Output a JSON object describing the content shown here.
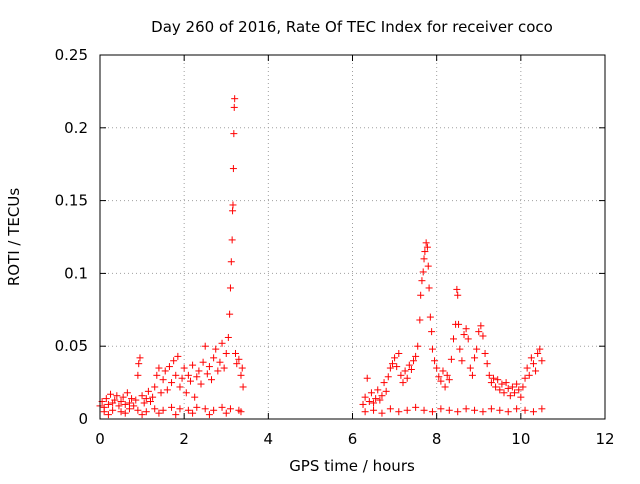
{
  "chart_data": {
    "type": "scatter",
    "title": "Day 260 of 2016, Rate Of TEC Index for receiver coco",
    "xlabel": "GPS time / hours",
    "ylabel": "ROTI / TECUs",
    "xlim": [
      0,
      12
    ],
    "ylim": [
      0,
      0.25
    ],
    "x_ticks": [
      {
        "value": 0,
        "label": "0"
      },
      {
        "value": 2,
        "label": "2"
      },
      {
        "value": 4,
        "label": "4"
      },
      {
        "value": 6,
        "label": "6"
      },
      {
        "value": 8,
        "label": "8"
      },
      {
        "value": 10,
        "label": "10"
      },
      {
        "value": 12,
        "label": "12"
      }
    ],
    "y_ticks": [
      {
        "value": 0,
        "label": "0"
      },
      {
        "value": 0.05,
        "label": "0.05"
      },
      {
        "value": 0.1,
        "label": "0.1"
      },
      {
        "value": 0.15,
        "label": "0.15"
      },
      {
        "value": 0.2,
        "label": "0.2"
      },
      {
        "value": 0.25,
        "label": "0.25"
      }
    ],
    "grid": true,
    "marker": "+",
    "marker_color": "#ff0000",
    "series": [
      {
        "name": "ROTI",
        "points": [
          [
            0.0,
            0.009
          ],
          [
            0.05,
            0.012
          ],
          [
            0.1,
            0.008
          ],
          [
            0.15,
            0.014
          ],
          [
            0.2,
            0.01
          ],
          [
            0.25,
            0.017
          ],
          [
            0.3,
            0.011
          ],
          [
            0.35,
            0.013
          ],
          [
            0.4,
            0.016
          ],
          [
            0.45,
            0.009
          ],
          [
            0.5,
            0.012
          ],
          [
            0.55,
            0.015
          ],
          [
            0.6,
            0.01
          ],
          [
            0.65,
            0.018
          ],
          [
            0.7,
            0.011
          ],
          [
            0.75,
            0.014
          ],
          [
            0.8,
            0.009
          ],
          [
            0.85,
            0.013
          ],
          [
            0.9,
            0.03
          ],
          [
            0.92,
            0.038
          ],
          [
            0.95,
            0.042
          ],
          [
            1.0,
            0.016
          ],
          [
            1.05,
            0.011
          ],
          [
            1.1,
            0.014
          ],
          [
            1.15,
            0.019
          ],
          [
            1.2,
            0.012
          ],
          [
            1.25,
            0.015
          ],
          [
            1.3,
            0.022
          ],
          [
            1.35,
            0.03
          ],
          [
            1.4,
            0.035
          ],
          [
            1.45,
            0.018
          ],
          [
            1.5,
            0.027
          ],
          [
            1.55,
            0.033
          ],
          [
            1.6,
            0.02
          ],
          [
            1.65,
            0.036
          ],
          [
            1.7,
            0.025
          ],
          [
            1.75,
            0.04
          ],
          [
            1.8,
            0.03
          ],
          [
            1.85,
            0.043
          ],
          [
            1.9,
            0.022
          ],
          [
            1.95,
            0.028
          ],
          [
            2.0,
            0.035
          ],
          [
            2.05,
            0.018
          ],
          [
            2.1,
            0.03
          ],
          [
            2.15,
            0.026
          ],
          [
            2.2,
            0.037
          ],
          [
            2.25,
            0.015
          ],
          [
            2.3,
            0.029
          ],
          [
            2.35,
            0.033
          ],
          [
            2.4,
            0.024
          ],
          [
            2.45,
            0.039
          ],
          [
            2.5,
            0.05
          ],
          [
            2.55,
            0.031
          ],
          [
            2.6,
            0.036
          ],
          [
            2.65,
            0.027
          ],
          [
            2.7,
            0.042
          ],
          [
            2.75,
            0.048
          ],
          [
            2.8,
            0.033
          ],
          [
            2.85,
            0.039
          ],
          [
            2.9,
            0.052
          ],
          [
            2.95,
            0.035
          ],
          [
            3.0,
            0.045
          ],
          [
            3.05,
            0.056
          ],
          [
            3.08,
            0.072
          ],
          [
            3.1,
            0.09
          ],
          [
            3.12,
            0.108
          ],
          [
            3.14,
            0.123
          ],
          [
            3.15,
            0.143
          ],
          [
            3.16,
            0.147
          ],
          [
            3.17,
            0.172
          ],
          [
            3.18,
            0.196
          ],
          [
            3.19,
            0.214
          ],
          [
            3.2,
            0.22
          ],
          [
            3.22,
            0.045
          ],
          [
            3.25,
            0.038
          ],
          [
            3.3,
            0.041
          ],
          [
            3.35,
            0.03
          ],
          [
            3.38,
            0.035
          ],
          [
            3.4,
            0.022
          ],
          [
            0.1,
            0.005
          ],
          [
            0.3,
            0.006
          ],
          [
            0.5,
            0.005
          ],
          [
            0.7,
            0.007
          ],
          [
            0.9,
            0.006
          ],
          [
            1.1,
            0.005
          ],
          [
            1.3,
            0.007
          ],
          [
            1.5,
            0.006
          ],
          [
            1.7,
            0.008
          ],
          [
            1.9,
            0.007
          ],
          [
            2.1,
            0.006
          ],
          [
            2.3,
            0.008
          ],
          [
            2.5,
            0.007
          ],
          [
            2.7,
            0.006
          ],
          [
            2.9,
            0.008
          ],
          [
            3.1,
            0.007
          ],
          [
            3.3,
            0.006
          ],
          [
            0.2,
            0.003
          ],
          [
            0.6,
            0.004
          ],
          [
            1.0,
            0.003
          ],
          [
            1.4,
            0.004
          ],
          [
            1.8,
            0.003
          ],
          [
            2.2,
            0.004
          ],
          [
            2.6,
            0.003
          ],
          [
            3.0,
            0.004
          ],
          [
            3.35,
            0.005
          ],
          [
            6.25,
            0.01
          ],
          [
            6.3,
            0.015
          ],
          [
            6.35,
            0.028
          ],
          [
            6.4,
            0.012
          ],
          [
            6.45,
            0.018
          ],
          [
            6.5,
            0.011
          ],
          [
            6.55,
            0.014
          ],
          [
            6.6,
            0.02
          ],
          [
            6.65,
            0.013
          ],
          [
            6.7,
            0.016
          ],
          [
            6.75,
            0.025
          ],
          [
            6.8,
            0.019
          ],
          [
            6.85,
            0.029
          ],
          [
            6.9,
            0.035
          ],
          [
            6.95,
            0.038
          ],
          [
            7.0,
            0.042
          ],
          [
            7.05,
            0.036
          ],
          [
            7.1,
            0.045
          ],
          [
            7.15,
            0.03
          ],
          [
            7.2,
            0.025
          ],
          [
            7.25,
            0.033
          ],
          [
            7.3,
            0.028
          ],
          [
            7.35,
            0.037
          ],
          [
            7.4,
            0.034
          ],
          [
            7.45,
            0.04
          ],
          [
            7.5,
            0.043
          ],
          [
            7.55,
            0.05
          ],
          [
            7.6,
            0.068
          ],
          [
            7.62,
            0.085
          ],
          [
            7.65,
            0.095
          ],
          [
            7.68,
            0.101
          ],
          [
            7.7,
            0.11
          ],
          [
            7.72,
            0.115
          ],
          [
            7.75,
            0.121
          ],
          [
            7.78,
            0.118
          ],
          [
            7.8,
            0.105
          ],
          [
            7.82,
            0.09
          ],
          [
            7.85,
            0.07
          ],
          [
            7.88,
            0.06
          ],
          [
            7.9,
            0.048
          ],
          [
            7.95,
            0.04
          ],
          [
            8.0,
            0.035
          ],
          [
            8.05,
            0.029
          ],
          [
            8.1,
            0.026
          ],
          [
            8.15,
            0.033
          ],
          [
            8.2,
            0.022
          ],
          [
            8.25,
            0.03
          ],
          [
            8.3,
            0.027
          ],
          [
            8.35,
            0.041
          ],
          [
            8.4,
            0.055
          ],
          [
            8.45,
            0.065
          ],
          [
            8.48,
            0.089
          ],
          [
            8.5,
            0.085
          ],
          [
            8.52,
            0.065
          ],
          [
            8.55,
            0.048
          ],
          [
            8.6,
            0.04
          ],
          [
            8.65,
            0.058
          ],
          [
            8.7,
            0.062
          ],
          [
            8.75,
            0.055
          ],
          [
            8.8,
            0.035
          ],
          [
            8.85,
            0.03
          ],
          [
            8.9,
            0.042
          ],
          [
            8.95,
            0.048
          ],
          [
            9.0,
            0.06
          ],
          [
            9.05,
            0.064
          ],
          [
            9.1,
            0.057
          ],
          [
            9.15,
            0.045
          ],
          [
            9.2,
            0.038
          ],
          [
            9.25,
            0.03
          ],
          [
            9.3,
            0.025
          ],
          [
            9.35,
            0.028
          ],
          [
            9.4,
            0.022
          ],
          [
            9.45,
            0.027
          ],
          [
            9.5,
            0.02
          ],
          [
            9.55,
            0.024
          ],
          [
            9.6,
            0.018
          ],
          [
            9.65,
            0.025
          ],
          [
            9.7,
            0.021
          ],
          [
            9.75,
            0.016
          ],
          [
            9.8,
            0.022
          ],
          [
            9.85,
            0.018
          ],
          [
            9.9,
            0.024
          ],
          [
            9.95,
            0.02
          ],
          [
            10.0,
            0.015
          ],
          [
            10.05,
            0.022
          ],
          [
            10.1,
            0.028
          ],
          [
            10.15,
            0.035
          ],
          [
            10.2,
            0.03
          ],
          [
            10.25,
            0.042
          ],
          [
            10.3,
            0.038
          ],
          [
            10.35,
            0.033
          ],
          [
            10.4,
            0.045
          ],
          [
            10.45,
            0.048
          ],
          [
            10.5,
            0.04
          ],
          [
            6.3,
            0.005
          ],
          [
            6.5,
            0.006
          ],
          [
            6.7,
            0.004
          ],
          [
            6.9,
            0.007
          ],
          [
            7.1,
            0.005
          ],
          [
            7.3,
            0.006
          ],
          [
            7.5,
            0.008
          ],
          [
            7.7,
            0.006
          ],
          [
            7.9,
            0.005
          ],
          [
            8.1,
            0.007
          ],
          [
            8.3,
            0.006
          ],
          [
            8.5,
            0.005
          ],
          [
            8.7,
            0.007
          ],
          [
            8.9,
            0.006
          ],
          [
            9.1,
            0.005
          ],
          [
            9.3,
            0.007
          ],
          [
            9.5,
            0.006
          ],
          [
            9.7,
            0.005
          ],
          [
            9.9,
            0.007
          ],
          [
            10.1,
            0.006
          ],
          [
            10.3,
            0.005
          ],
          [
            10.5,
            0.007
          ]
        ]
      }
    ]
  }
}
